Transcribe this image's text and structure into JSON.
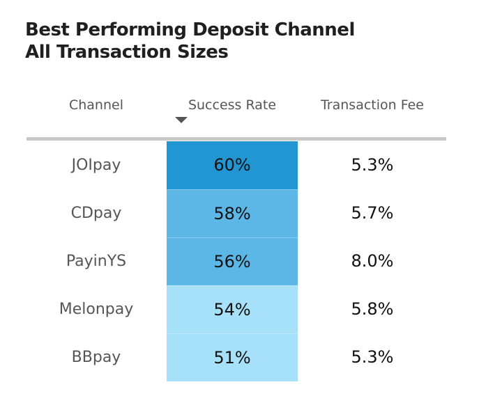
{
  "title_line1": "Best Performing Deposit Channel",
  "title_line2": "All Transaction Sizes",
  "chart_data": {
    "type": "table",
    "columns": [
      "Channel",
      "Success Rate",
      "Transaction Fee"
    ],
    "sorted_by": "Success Rate",
    "sort_direction": "descending",
    "rows": [
      {
        "channel": "JOIpay",
        "success_rate": "60%",
        "transaction_fee": "5.3%",
        "success_value": 60,
        "fee_value": 5.3,
        "color": "#2196d3"
      },
      {
        "channel": "CDpay",
        "success_rate": "58%",
        "transaction_fee": "5.7%",
        "success_value": 58,
        "fee_value": 5.7,
        "color": "#5db7e6"
      },
      {
        "channel": "PayinYS",
        "success_rate": "56%",
        "transaction_fee": "8.0%",
        "success_value": 56,
        "fee_value": 8.0,
        "color": "#5db7e6"
      },
      {
        "channel": "Melonpay",
        "success_rate": "54%",
        "transaction_fee": "5.8%",
        "success_value": 54,
        "fee_value": 5.8,
        "color": "#a6e1f9"
      },
      {
        "channel": "BBpay",
        "success_rate": "51%",
        "transaction_fee": "5.3%",
        "success_value": 51,
        "fee_value": 5.3,
        "color": "#a6e1f9"
      }
    ]
  }
}
